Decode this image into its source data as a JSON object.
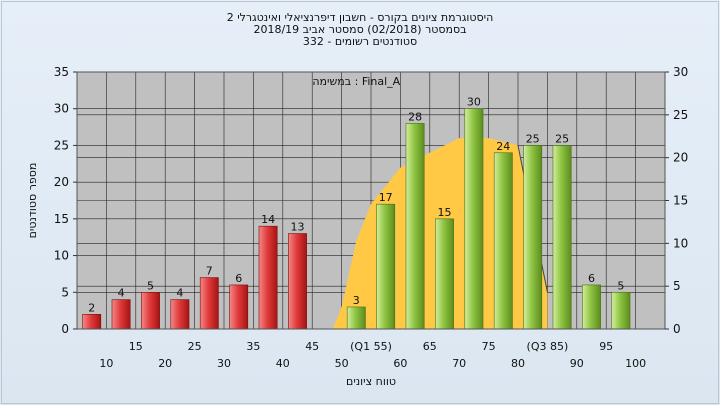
{
  "chart_data": {
    "type": "bar",
    "title_lines": [
      "היסטוגרמת ציונים בקורס - חשבון דיפרנציאלי ואינטגרלי 2",
      "בסמסטר    (02/2018)  סמסטר אביב 2018/19",
      "סטודנטים רשומים - 332"
    ],
    "annotation": "במשימה : Final_A",
    "xlabel": "טווח ציונים",
    "ylabel": "מספר סטודנטים",
    "ylim": [
      0,
      35
    ],
    "y2lim": [
      0,
      30
    ],
    "yticks": [
      0,
      5,
      10,
      15,
      20,
      25,
      30,
      35
    ],
    "y2ticks": [
      0,
      5,
      10,
      15,
      20,
      25,
      30
    ],
    "x_upper_ticks": [
      "15",
      "25",
      "35",
      "45",
      "(Q1 55)",
      "65",
      "75",
      "(Q3 85)",
      "95"
    ],
    "x_lower_ticks": [
      "10",
      "20",
      "30",
      "40",
      "50",
      "60",
      "70",
      "80",
      "90",
      "100"
    ],
    "grid": true,
    "series": [
      {
        "color": "#d42a2a",
        "bars": [
          {
            "slot": 0,
            "value": 2
          },
          {
            "slot": 1,
            "value": 4
          },
          {
            "slot": 2,
            "value": 5
          },
          {
            "slot": 3,
            "value": 4
          },
          {
            "slot": 4,
            "value": 7
          },
          {
            "slot": 5,
            "value": 6
          },
          {
            "slot": 6,
            "value": 14
          },
          {
            "slot": 7,
            "value": 13
          }
        ]
      },
      {
        "color": "#8cc63f",
        "bars": [
          {
            "slot": 9,
            "value": 3
          },
          {
            "slot": 10,
            "value": 17
          },
          {
            "slot": 11,
            "value": 28
          },
          {
            "slot": 12,
            "value": 15
          },
          {
            "slot": 13,
            "value": 30
          },
          {
            "slot": 14,
            "value": 24
          },
          {
            "slot": 15,
            "value": 25
          },
          {
            "slot": 16,
            "value": 25
          },
          {
            "slot": 17,
            "value": 6
          },
          {
            "slot": 18,
            "value": 5
          }
        ]
      }
    ],
    "area": {
      "color": "#ffc845",
      "points": [
        {
          "slot": 8.7,
          "value": 0
        },
        {
          "slot": 9.0,
          "value": 3
        },
        {
          "slot": 9.5,
          "value": 12
        },
        {
          "slot": 10.0,
          "value": 17
        },
        {
          "slot": 11.0,
          "value": 22
        },
        {
          "slot": 12.0,
          "value": 24
        },
        {
          "slot": 13.0,
          "value": 26
        },
        {
          "slot": 14.0,
          "value": 26
        },
        {
          "slot": 15.0,
          "value": 25
        },
        {
          "slot": 16.0,
          "value": 5
        },
        {
          "slot": 16.0,
          "value": 0
        }
      ]
    }
  }
}
